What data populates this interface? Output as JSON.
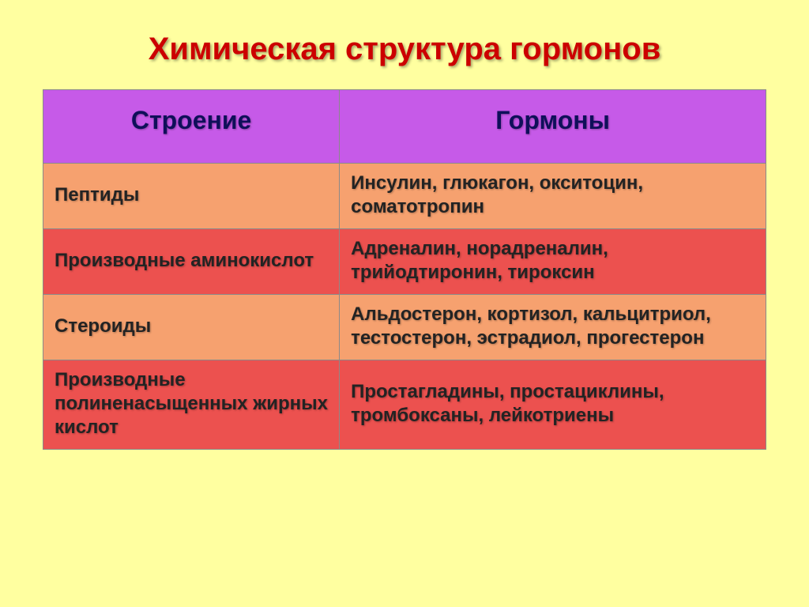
{
  "title": {
    "text": "Химическая структура гормонов",
    "color": "#cc0000",
    "fontsize": 40
  },
  "table": {
    "border_color": "#8a8a8a",
    "header": {
      "bg": "#c65ae8",
      "color": "#0f0f5a",
      "fontsize": 32,
      "cells": [
        "Строение",
        "Гормоны"
      ]
    },
    "body": {
      "fontsize": 24,
      "text_color": "#232323",
      "row_bgs": [
        "#f6a16f",
        "#ec514f"
      ],
      "rows": [
        [
          "Пептиды",
          "Инсулин, глюкагон, окситоцин, соматотропин"
        ],
        [
          "Производные аминокислот",
          "Адреналин, норадреналин, трийодтиронин, тироксин"
        ],
        [
          "Стероиды",
          "Альдостерон, кортизол, кальцитриол, тестостерон, эстрадиол, прогестерон"
        ],
        [
          "Производные полиненасыщенных жирных кислот",
          "Простагладины, простациклины, тромбоксаны, лейкотриены"
        ]
      ]
    }
  }
}
